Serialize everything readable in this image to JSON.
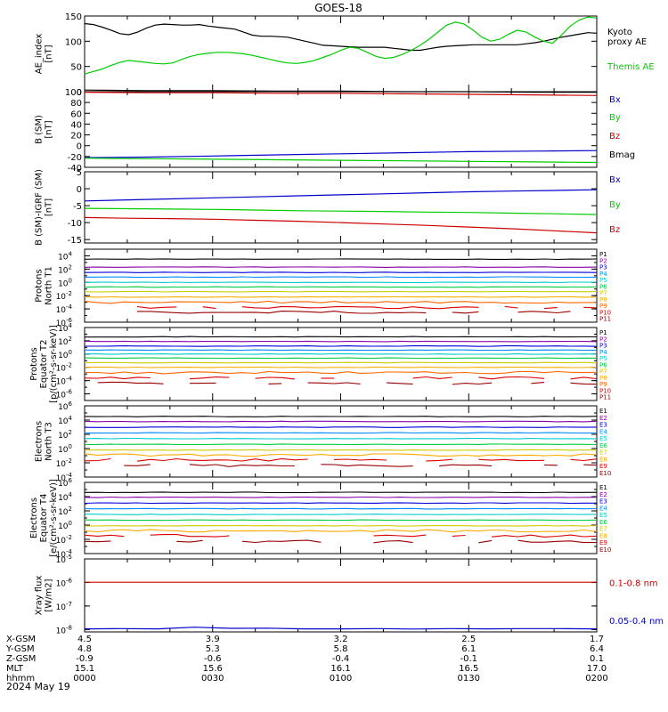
{
  "title": "GOES-18",
  "date_label": "2024 May 19",
  "ephemeris": {
    "row_labels": [
      "X-GSM",
      "Y-GSM",
      "Z-GSM",
      "MLT",
      "hhmm"
    ],
    "columns": [
      [
        "4.5",
        "4.8",
        "-0.9",
        "15.1",
        "0000"
      ],
      [
        "3.9",
        "5.3",
        "-0.6",
        "15.6",
        "0030"
      ],
      [
        "3.2",
        "5.8",
        "-0.4",
        "16.1",
        "0100"
      ],
      [
        "2.5",
        "6.1",
        "-0.1",
        "16.5",
        "0130"
      ],
      [
        "1.7",
        "6.4",
        "0.1",
        "17.0",
        "0200"
      ]
    ]
  },
  "chart_data": [
    {
      "type": "line",
      "panel": "ae-index",
      "ylabel": [
        "AE_index",
        "[nT]"
      ],
      "ylim": [
        0,
        150
      ],
      "yticks": [
        "0",
        "50",
        "100",
        "150"
      ],
      "x_range_hhmm": [
        "0000",
        "0200"
      ],
      "series": [
        {
          "name": "Themis AE",
          "color": "#000000",
          "values": [
            135,
            133,
            128,
            122,
            115,
            113,
            118,
            126,
            132,
            134,
            133,
            132,
            132,
            133,
            130,
            128,
            126,
            124,
            118,
            112,
            110,
            110,
            109,
            108,
            104,
            100,
            96,
            92,
            91,
            90,
            89,
            88,
            88,
            88,
            88,
            86,
            84,
            82,
            82,
            85,
            88,
            90,
            91,
            92,
            93,
            93,
            93,
            93,
            93,
            93,
            95,
            97,
            100,
            104,
            108,
            111,
            114,
            117,
            116
          ]
        },
        {
          "name": "Kyoto proxy AE",
          "color": "#00cc00",
          "values": [
            35,
            40,
            45,
            52,
            58,
            62,
            60,
            58,
            56,
            55,
            57,
            64,
            70,
            74,
            76,
            78,
            78,
            77,
            75,
            72,
            68,
            64,
            60,
            57,
            56,
            58,
            62,
            68,
            74,
            82,
            88,
            86,
            78,
            70,
            66,
            68,
            74,
            82,
            92,
            104,
            118,
            132,
            138,
            134,
            122,
            108,
            100,
            104,
            114,
            122,
            118,
            108,
            100,
            96,
            112,
            130,
            142,
            148,
            146
          ]
        }
      ]
    },
    {
      "type": "line",
      "panel": "b-sm",
      "ylabel": [
        "B (SM)",
        "[nT]"
      ],
      "ylim": [
        -40,
        100
      ],
      "yticks": [
        "-40",
        "-20",
        "0",
        "20",
        "40",
        "60",
        "80",
        "100"
      ],
      "series": [
        {
          "name": "Bx",
          "color": "#0000cc",
          "values": [
            -22,
            -21,
            -19,
            -17,
            -15,
            -13,
            -11,
            -10,
            -9
          ]
        },
        {
          "name": "By",
          "color": "#00cc00",
          "values": [
            -23,
            -24,
            -25,
            -26,
            -27,
            -28,
            -29,
            -30,
            -31
          ]
        },
        {
          "name": "Bz",
          "color": "#cc0000",
          "values": [
            99,
            98,
            98,
            97,
            97,
            96,
            95,
            94,
            93
          ]
        },
        {
          "name": "Bmag",
          "color": "#000000",
          "values": [
            103,
            102,
            102,
            101,
            101,
            100,
            100,
            99,
            99
          ]
        }
      ]
    },
    {
      "type": "line",
      "panel": "b-sm-minus-igrf",
      "ylabel": [
        "B (SM)-IGRF (SM)",
        "[nT]"
      ],
      "ylim": [
        -16,
        5
      ],
      "yticks": [
        "-15",
        "-10",
        "-5",
        "0",
        "5"
      ],
      "series": [
        {
          "name": "Bx",
          "color": "#0000cc",
          "values": [
            -3.6,
            -3.3,
            -3.0,
            -2.7,
            -2.4,
            -2.1,
            -1.8,
            -1.5,
            -1.2,
            -0.9,
            -0.7,
            -0.5,
            -0.3
          ]
        },
        {
          "name": "By",
          "color": "#00cc00",
          "values": [
            -5.8,
            -5.9,
            -6.0,
            -6.1,
            -6.3,
            -6.5,
            -6.6,
            -6.7,
            -6.9,
            -7.0,
            -7.2,
            -7.4,
            -7.6
          ]
        },
        {
          "name": "Bz",
          "color": "#cc0000",
          "values": [
            -8.5,
            -8.7,
            -8.8,
            -9.0,
            -9.3,
            -9.6,
            -10.0,
            -10.4,
            -10.8,
            -11.3,
            -11.8,
            -12.4,
            -13.0
          ]
        }
      ]
    },
    {
      "type": "line",
      "panel": "protons-north-t1",
      "ylabel": [
        "Protons",
        "North T1"
      ],
      "yscale": "log",
      "ylim_exp": [
        -6,
        5
      ],
      "ytick_exps": [
        -6,
        -4,
        -2,
        0,
        2,
        4
      ],
      "channel_names": [
        "P1",
        "P2",
        "P3",
        "P4",
        "P5",
        "P6",
        "P7",
        "P8",
        "P9",
        "P10",
        "P11"
      ],
      "channel_colors": [
        "#000000",
        "#8800aa",
        "#0000dd",
        "#0088ff",
        "#00cccc",
        "#00cc44",
        "#cccc00",
        "#ffaa00",
        "#ff6600",
        "#dd0000",
        "#990000"
      ],
      "levels_exp": [
        3.5,
        2.3,
        1.5,
        0.8,
        0.0,
        -0.7,
        -1.4,
        -2.2,
        -3.0,
        -3.8,
        -4.5
      ]
    },
    {
      "type": "line",
      "panel": "protons-equator-t2",
      "ylabel": [
        "Protons",
        "Equator T2",
        "[p/(cm²-s-sr-keV)]"
      ],
      "yscale": "log",
      "ylim_exp": [
        -7,
        4
      ],
      "ytick_exps": [
        -6,
        -4,
        -2,
        0,
        2,
        4
      ],
      "channel_names": [
        "P1",
        "P2",
        "P3",
        "P4",
        "P5",
        "P6",
        "P7",
        "P8",
        "P9",
        "P10",
        "P11"
      ],
      "channel_colors": [
        "#000000",
        "#8800aa",
        "#0000dd",
        "#0088ff",
        "#00cccc",
        "#00cc44",
        "#cccc00",
        "#ffaa00",
        "#ff6600",
        "#dd0000",
        "#990000"
      ],
      "levels_exp": [
        2.6,
        1.9,
        1.2,
        0.6,
        0.0,
        -0.6,
        -1.3,
        -2.0,
        -2.8,
        -3.6,
        -4.4
      ]
    },
    {
      "type": "line",
      "panel": "electrons-north-t3",
      "ylabel": [
        "Electrons",
        "North T3"
      ],
      "yscale": "log",
      "ylim_exp": [
        -4,
        6
      ],
      "ytick_exps": [
        -4,
        -2,
        0,
        2,
        4,
        6
      ],
      "channel_names": [
        "E1",
        "E2",
        "E3",
        "E4",
        "E5",
        "E6",
        "E7",
        "E8",
        "E9",
        "E10"
      ],
      "channel_colors": [
        "#000000",
        "#8800aa",
        "#0000dd",
        "#0088ff",
        "#00cccc",
        "#00cc44",
        "#cccc00",
        "#ffaa00",
        "#dd0000",
        "#990000"
      ],
      "levels_exp": [
        4.5,
        3.8,
        3.0,
        2.2,
        1.4,
        0.6,
        -0.2,
        -0.9,
        -1.6,
        -2.4
      ]
    },
    {
      "type": "line",
      "panel": "electrons-equator-t4",
      "ylabel": [
        "Electrons",
        "Equator T4",
        "[e/(cm²-s-sr-keV)]"
      ],
      "yscale": "log",
      "ylim_exp": [
        -4,
        6
      ],
      "ytick_exps": [
        -4,
        -2,
        0,
        2,
        4,
        6
      ],
      "channel_names": [
        "E1",
        "E2",
        "E3",
        "E4",
        "E5",
        "E6",
        "E7",
        "E8",
        "E9",
        "E10"
      ],
      "channel_colors": [
        "#000000",
        "#8800aa",
        "#0000dd",
        "#0088ff",
        "#00cccc",
        "#00cc44",
        "#cccc00",
        "#ffaa00",
        "#dd0000",
        "#990000"
      ],
      "levels_exp": [
        4.6,
        3.9,
        3.1,
        2.3,
        1.5,
        0.7,
        -0.1,
        -0.8,
        -1.5,
        -2.3
      ]
    },
    {
      "type": "line",
      "panel": "xray-flux",
      "ylabel": [
        "Xray flux",
        "[W/m2]"
      ],
      "yscale": "log",
      "ylim_exp": [
        -8.1,
        -5
      ],
      "ytick_exps": [
        -8,
        -7,
        -6,
        -5
      ],
      "series": [
        {
          "name": "0.1-0.8 nm",
          "color": "#cc0000",
          "values_exp": [
            -5.99,
            -5.99,
            -5.99,
            -5.99,
            -5.99,
            -5.99,
            -5.99,
            -5.99,
            -5.99,
            -5.99,
            -5.99,
            -5.99,
            -5.99,
            -5.99,
            -5.99
          ]
        },
        {
          "name": "0.05-0.4 nm",
          "color": "#0000cc",
          "values_exp": [
            -7.97,
            -7.96,
            -7.97,
            -7.9,
            -7.95,
            -7.94,
            -7.97,
            -7.97,
            -7.96,
            -7.98,
            -7.96,
            -7.97,
            -7.96,
            -7.96,
            -7.97
          ]
        }
      ]
    }
  ]
}
